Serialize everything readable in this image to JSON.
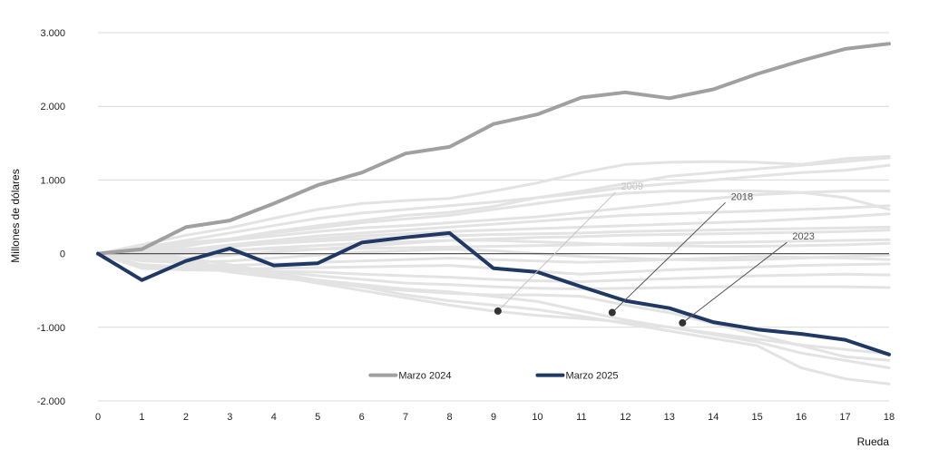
{
  "chart_data": {
    "type": "line",
    "title": "",
    "xlabel": "Rueda",
    "ylabel": "Millones de dólares",
    "x": [
      0,
      1,
      2,
      3,
      4,
      5,
      6,
      7,
      8,
      9,
      10,
      11,
      12,
      13,
      14,
      15,
      16,
      17,
      18
    ],
    "x_tick_labels": [
      "0",
      "1",
      "2",
      "3",
      "4",
      "5",
      "6",
      "7",
      "8",
      "9",
      "10",
      "11",
      "12",
      "13",
      "14",
      "15",
      "16",
      "17",
      "18"
    ],
    "ylim": [
      -2000,
      3000
    ],
    "y_ticks": [
      3000,
      2000,
      1000,
      0,
      -1000,
      -2000
    ],
    "y_tick_labels": [
      "3.000",
      "2.000",
      "1.000",
      "0",
      "-1.000",
      "-2.000"
    ],
    "grid": "horizontal",
    "legend_position": "bottom-center",
    "series": [
      {
        "name": "Marzo 2024",
        "color": "#a0a0a0",
        "highlight": true,
        "values": [
          0,
          60,
          360,
          450,
          680,
          930,
          1100,
          1360,
          1450,
          1760,
          1890,
          2120,
          2190,
          2110,
          2230,
          2440,
          2620,
          2780,
          2850
        ]
      },
      {
        "name": "Marzo 2025",
        "color": "#1f3864",
        "highlight": true,
        "values": [
          0,
          -360,
          -100,
          70,
          -160,
          -130,
          150,
          220,
          280,
          -200,
          -250,
          -450,
          -640,
          -740,
          -930,
          -1030,
          -1090,
          -1170,
          -1370
        ]
      }
    ],
    "background_series_color": "#e3e3e3",
    "background_series": [
      [
        0,
        120,
        250,
        350,
        480,
        600,
        680,
        720,
        750,
        850,
        960,
        1100,
        1210,
        1240,
        1250,
        1240,
        1210,
        1290,
        1320
      ],
      [
        0,
        60,
        150,
        200,
        300,
        380,
        450,
        520,
        560,
        640,
        760,
        850,
        950,
        1050,
        1100,
        1150,
        1200,
        1250,
        1300
      ],
      [
        0,
        80,
        180,
        280,
        380,
        480,
        550,
        600,
        650,
        700,
        760,
        820,
        900,
        950,
        1000,
        1050,
        1100,
        1130,
        1200
      ],
      [
        0,
        20,
        100,
        200,
        280,
        350,
        420,
        470,
        520,
        600,
        680,
        760,
        820,
        850,
        850,
        850,
        830,
        760,
        600
      ],
      [
        0,
        40,
        120,
        180,
        240,
        300,
        350,
        380,
        420,
        460,
        500,
        560,
        620,
        680,
        750,
        800,
        830,
        850,
        850
      ],
      [
        0,
        0,
        50,
        120,
        180,
        240,
        280,
        320,
        360,
        400,
        440,
        480,
        520,
        540,
        560,
        580,
        600,
        620,
        650
      ],
      [
        0,
        -20,
        30,
        90,
        150,
        200,
        240,
        270,
        300,
        320,
        340,
        360,
        380,
        400,
        420,
        440,
        470,
        500,
        540
      ],
      [
        0,
        10,
        60,
        100,
        140,
        170,
        200,
        220,
        240,
        260,
        270,
        280,
        300,
        310,
        320,
        330,
        340,
        350,
        360
      ],
      [
        0,
        -40,
        0,
        40,
        80,
        110,
        140,
        160,
        180,
        200,
        220,
        230,
        250,
        260,
        270,
        280,
        290,
        300,
        320
      ],
      [
        0,
        30,
        40,
        50,
        60,
        60,
        70,
        80,
        90,
        100,
        110,
        120,
        130,
        140,
        150,
        160,
        170,
        180,
        190
      ],
      [
        0,
        -80,
        -60,
        -20,
        20,
        60,
        100,
        140,
        180,
        180,
        160,
        140,
        120,
        110,
        100,
        100,
        110,
        120,
        140
      ],
      [
        0,
        -100,
        -120,
        -100,
        -60,
        -20,
        20,
        40,
        60,
        40,
        0,
        -40,
        -60,
        -80,
        -90,
        -80,
        -60,
        -40,
        -20
      ],
      [
        0,
        -150,
        -180,
        -160,
        -140,
        -120,
        -100,
        -80,
        -60,
        -80,
        -100,
        -120,
        -100,
        -80,
        -60,
        -40,
        -50,
        -60,
        -80
      ],
      [
        0,
        -180,
        -200,
        -210,
        -200,
        -190,
        -180,
        -170,
        -160,
        -200,
        -240,
        -280,
        -250,
        -220,
        -200,
        -180,
        -160,
        -150,
        -140
      ],
      [
        0,
        -200,
        -220,
        -230,
        -240,
        -250,
        -280,
        -300,
        -320,
        -350,
        -370,
        -380,
        -360,
        -340,
        -320,
        -300,
        -290,
        -280,
        -290
      ],
      [
        0,
        -60,
        -120,
        -180,
        -240,
        -300,
        -350,
        -400,
        -420,
        -450,
        -470,
        -480,
        -470,
        -460,
        -450,
        -450,
        -450,
        -450,
        -460
      ],
      [
        0,
        -50,
        -150,
        -250,
        -320,
        -380,
        -450,
        -500,
        -540,
        -560,
        -560,
        -580,
        -700,
        -800,
        -950,
        -1100,
        -1250,
        -1400,
        -1450
      ],
      [
        0,
        -20,
        -100,
        -200,
        -280,
        -360,
        -420,
        -480,
        -520,
        -580,
        -650,
        -780,
        -900,
        -1000,
        -1100,
        -1200,
        -1350,
        -1450,
        -1550
      ],
      [
        0,
        0,
        -60,
        -150,
        -260,
        -360,
        -450,
        -560,
        -640,
        -700,
        -760,
        -850,
        -950,
        -1050,
        -1150,
        -1250,
        -1550,
        -1700,
        -1770
      ],
      [
        0,
        -40,
        -120,
        -200,
        -300,
        -400,
        -500,
        -600,
        -700,
        -780,
        -840,
        -880,
        -930,
        -1000,
        -1080,
        -1160,
        -1240,
        -1300,
        -1360
      ]
    ],
    "annotations": [
      {
        "label": "2009",
        "label_x": 11.9,
        "label_y": 870,
        "point_x": 9.1,
        "point_y": -780,
        "color": "#c4c4c4"
      },
      {
        "label": "2018",
        "label_x": 14.4,
        "label_y": 730,
        "point_x": 11.7,
        "point_y": -800,
        "color": "#555555"
      },
      {
        "label": "2023",
        "label_x": 15.8,
        "label_y": 190,
        "point_x": 13.3,
        "point_y": -940,
        "color": "#555555"
      }
    ]
  }
}
